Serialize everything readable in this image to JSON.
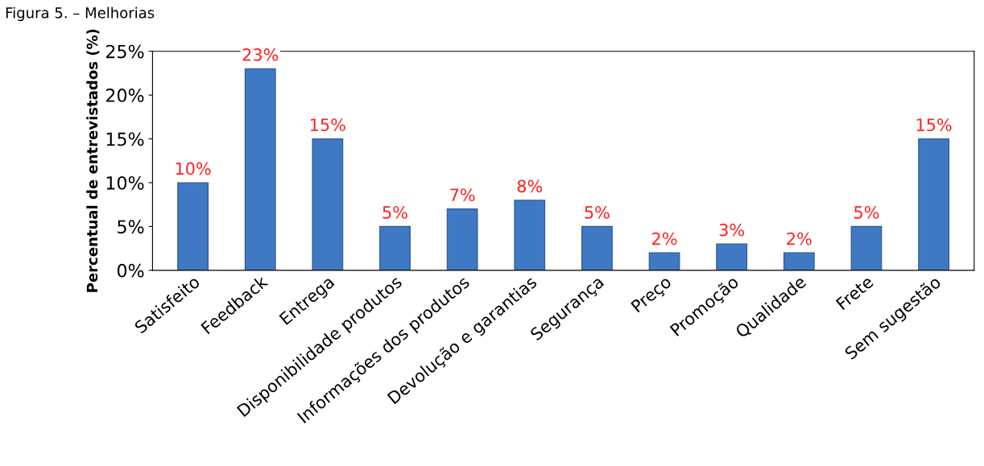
{
  "chart_data": {
    "type": "bar",
    "title": "Figura 5. – Melhorias",
    "ylabel": "Percentual de entrevistados (%)",
    "categories": [
      "Satisfeito",
      "Feedback",
      "Entrega",
      "Disponibilidade produtos",
      "Informações dos produtos",
      "Devolução e garantias",
      "Segurança",
      "Preço",
      "Promoção",
      "Qualidade",
      "Frete",
      "Sem sugestão"
    ],
    "values": [
      10,
      23,
      15,
      5,
      7,
      8,
      5,
      2,
      3,
      2,
      5,
      15
    ],
    "value_labels": [
      "10%",
      "23%",
      "15%",
      "5%",
      "7%",
      "8%",
      "5%",
      "2%",
      "3%",
      "2%",
      "5%",
      "15%"
    ],
    "color": "#3f79c4",
    "ylim": [
      0,
      25
    ],
    "yticks": [
      {
        "value": 0,
        "label": "0%"
      },
      {
        "value": 5,
        "label": "5%"
      },
      {
        "value": 10,
        "label": "10%"
      },
      {
        "value": 15,
        "label": "15%"
      },
      {
        "value": 20,
        "label": "20%"
      },
      {
        "value": 25,
        "label": "25%"
      }
    ],
    "grid": false
  }
}
